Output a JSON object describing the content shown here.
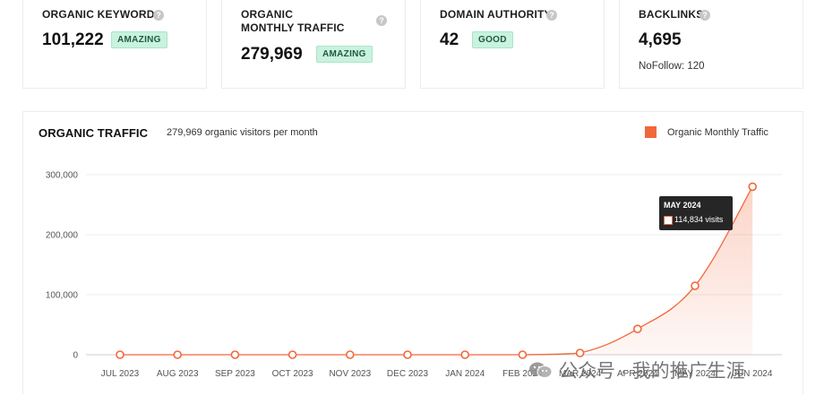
{
  "metrics": [
    {
      "title": "ORGANIC KEYWORDS",
      "value": "101,222",
      "badge": "AMAZING"
    },
    {
      "title": "ORGANIC MONTHLY TRAFFIC",
      "value": "279,969",
      "badge": "AMAZING"
    },
    {
      "title": "DOMAIN AUTHORITY",
      "value": "42",
      "badge": "GOOD"
    },
    {
      "title": "BACKLINKS",
      "value": "4,695",
      "sub": "NoFollow: 120"
    }
  ],
  "traffic": {
    "title": "ORGANIC TRAFFIC",
    "subtitle": "279,969 organic visitors per month",
    "legend": "Organic Monthly Traffic",
    "tooltip": {
      "month": "MAY 2024",
      "value": "114,834 visits"
    }
  },
  "colors": {
    "accent": "#f2673a",
    "badge_bg": "#c9f2df",
    "tooltip_bg": "#262626"
  },
  "chart_data": {
    "type": "area",
    "title": "ORGANIC TRAFFIC",
    "categories": [
      "JUL 2023",
      "AUG 2023",
      "SEP 2023",
      "OCT 2023",
      "NOV 2023",
      "DEC 2023",
      "JAN 2024",
      "FEB 2024",
      "MAR 2024",
      "APR 2024",
      "MAY 2024",
      "JUN 2024"
    ],
    "series": [
      {
        "name": "Organic Monthly Traffic",
        "values": [
          0,
          0,
          0,
          0,
          0,
          0,
          0,
          0,
          3000,
          43000,
          114834,
          279969
        ]
      }
    ],
    "yticks": [
      "300,000",
      "200,000",
      "100,000",
      "0"
    ],
    "ylim": [
      0,
      300000
    ],
    "grid": true,
    "legend_position": "top-right"
  },
  "watermark": "公众号 · 我的推广生涯"
}
